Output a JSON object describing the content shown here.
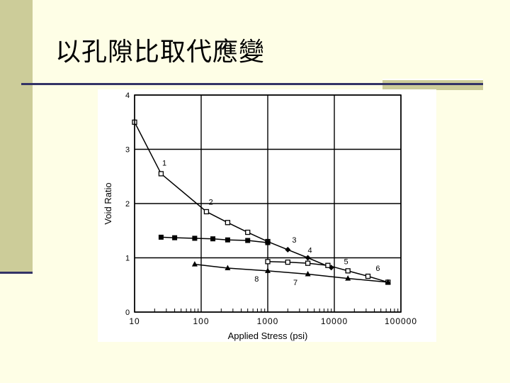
{
  "slide": {
    "title": "以孔隙比取代應變"
  },
  "chart_data": {
    "type": "line",
    "xlabel": "Applied Stress (psi)",
    "ylabel": "Void Ratio",
    "x_scale": "log",
    "xlim": [
      10,
      100000
    ],
    "ylim": [
      0,
      4
    ],
    "x_ticks": [
      10,
      100,
      1000,
      10000,
      100000
    ],
    "x_tick_labels": [
      "10",
      "100",
      "1000",
      "10000",
      "100000"
    ],
    "y_ticks": [
      0,
      1,
      2,
      3,
      4
    ],
    "y_tick_labels": [
      "0",
      "1",
      "2",
      "3",
      "4"
    ],
    "grid": true,
    "series": [
      {
        "marker": "square-open",
        "color": "#000000",
        "x": [
          10,
          25,
          120,
          250,
          500,
          1000
        ],
        "y": [
          3.5,
          2.55,
          1.85,
          1.65,
          1.47,
          1.3
        ]
      },
      {
        "marker": "diamond",
        "color": "#000000",
        "x": [
          1000,
          2000,
          4000,
          9000
        ],
        "y": [
          1.3,
          1.15,
          1.0,
          0.82
        ]
      },
      {
        "marker": "square-open",
        "color": "#000000",
        "x": [
          1000,
          2000,
          4000,
          8000,
          16000,
          32000,
          64000
        ],
        "y": [
          0.93,
          0.92,
          0.9,
          0.86,
          0.76,
          0.66,
          0.55
        ]
      },
      {
        "marker": "square-filled",
        "color": "#000000",
        "x": [
          25,
          40,
          80,
          150,
          250,
          500,
          1000
        ],
        "y": [
          1.38,
          1.37,
          1.36,
          1.35,
          1.33,
          1.32,
          1.28
        ]
      },
      {
        "marker": "triangle",
        "color": "#000000",
        "x": [
          80,
          250,
          1000,
          4000,
          16000,
          64000
        ],
        "y": [
          0.88,
          0.81,
          0.76,
          0.7,
          0.62,
          0.55
        ]
      }
    ],
    "annotations": [
      {
        "text": "1",
        "x": 28,
        "y": 2.7
      },
      {
        "text": "2",
        "x": 140,
        "y": 1.98
      },
      {
        "text": "3",
        "x": 2500,
        "y": 1.28
      },
      {
        "text": "4",
        "x": 4300,
        "y": 1.09
      },
      {
        "text": "5",
        "x": 15000,
        "y": 0.88
      },
      {
        "text": "6",
        "x": 45000,
        "y": 0.76
      },
      {
        "text": "8",
        "x": 680,
        "y": 0.56
      },
      {
        "text": "7",
        "x": 2600,
        "y": 0.5
      }
    ]
  }
}
